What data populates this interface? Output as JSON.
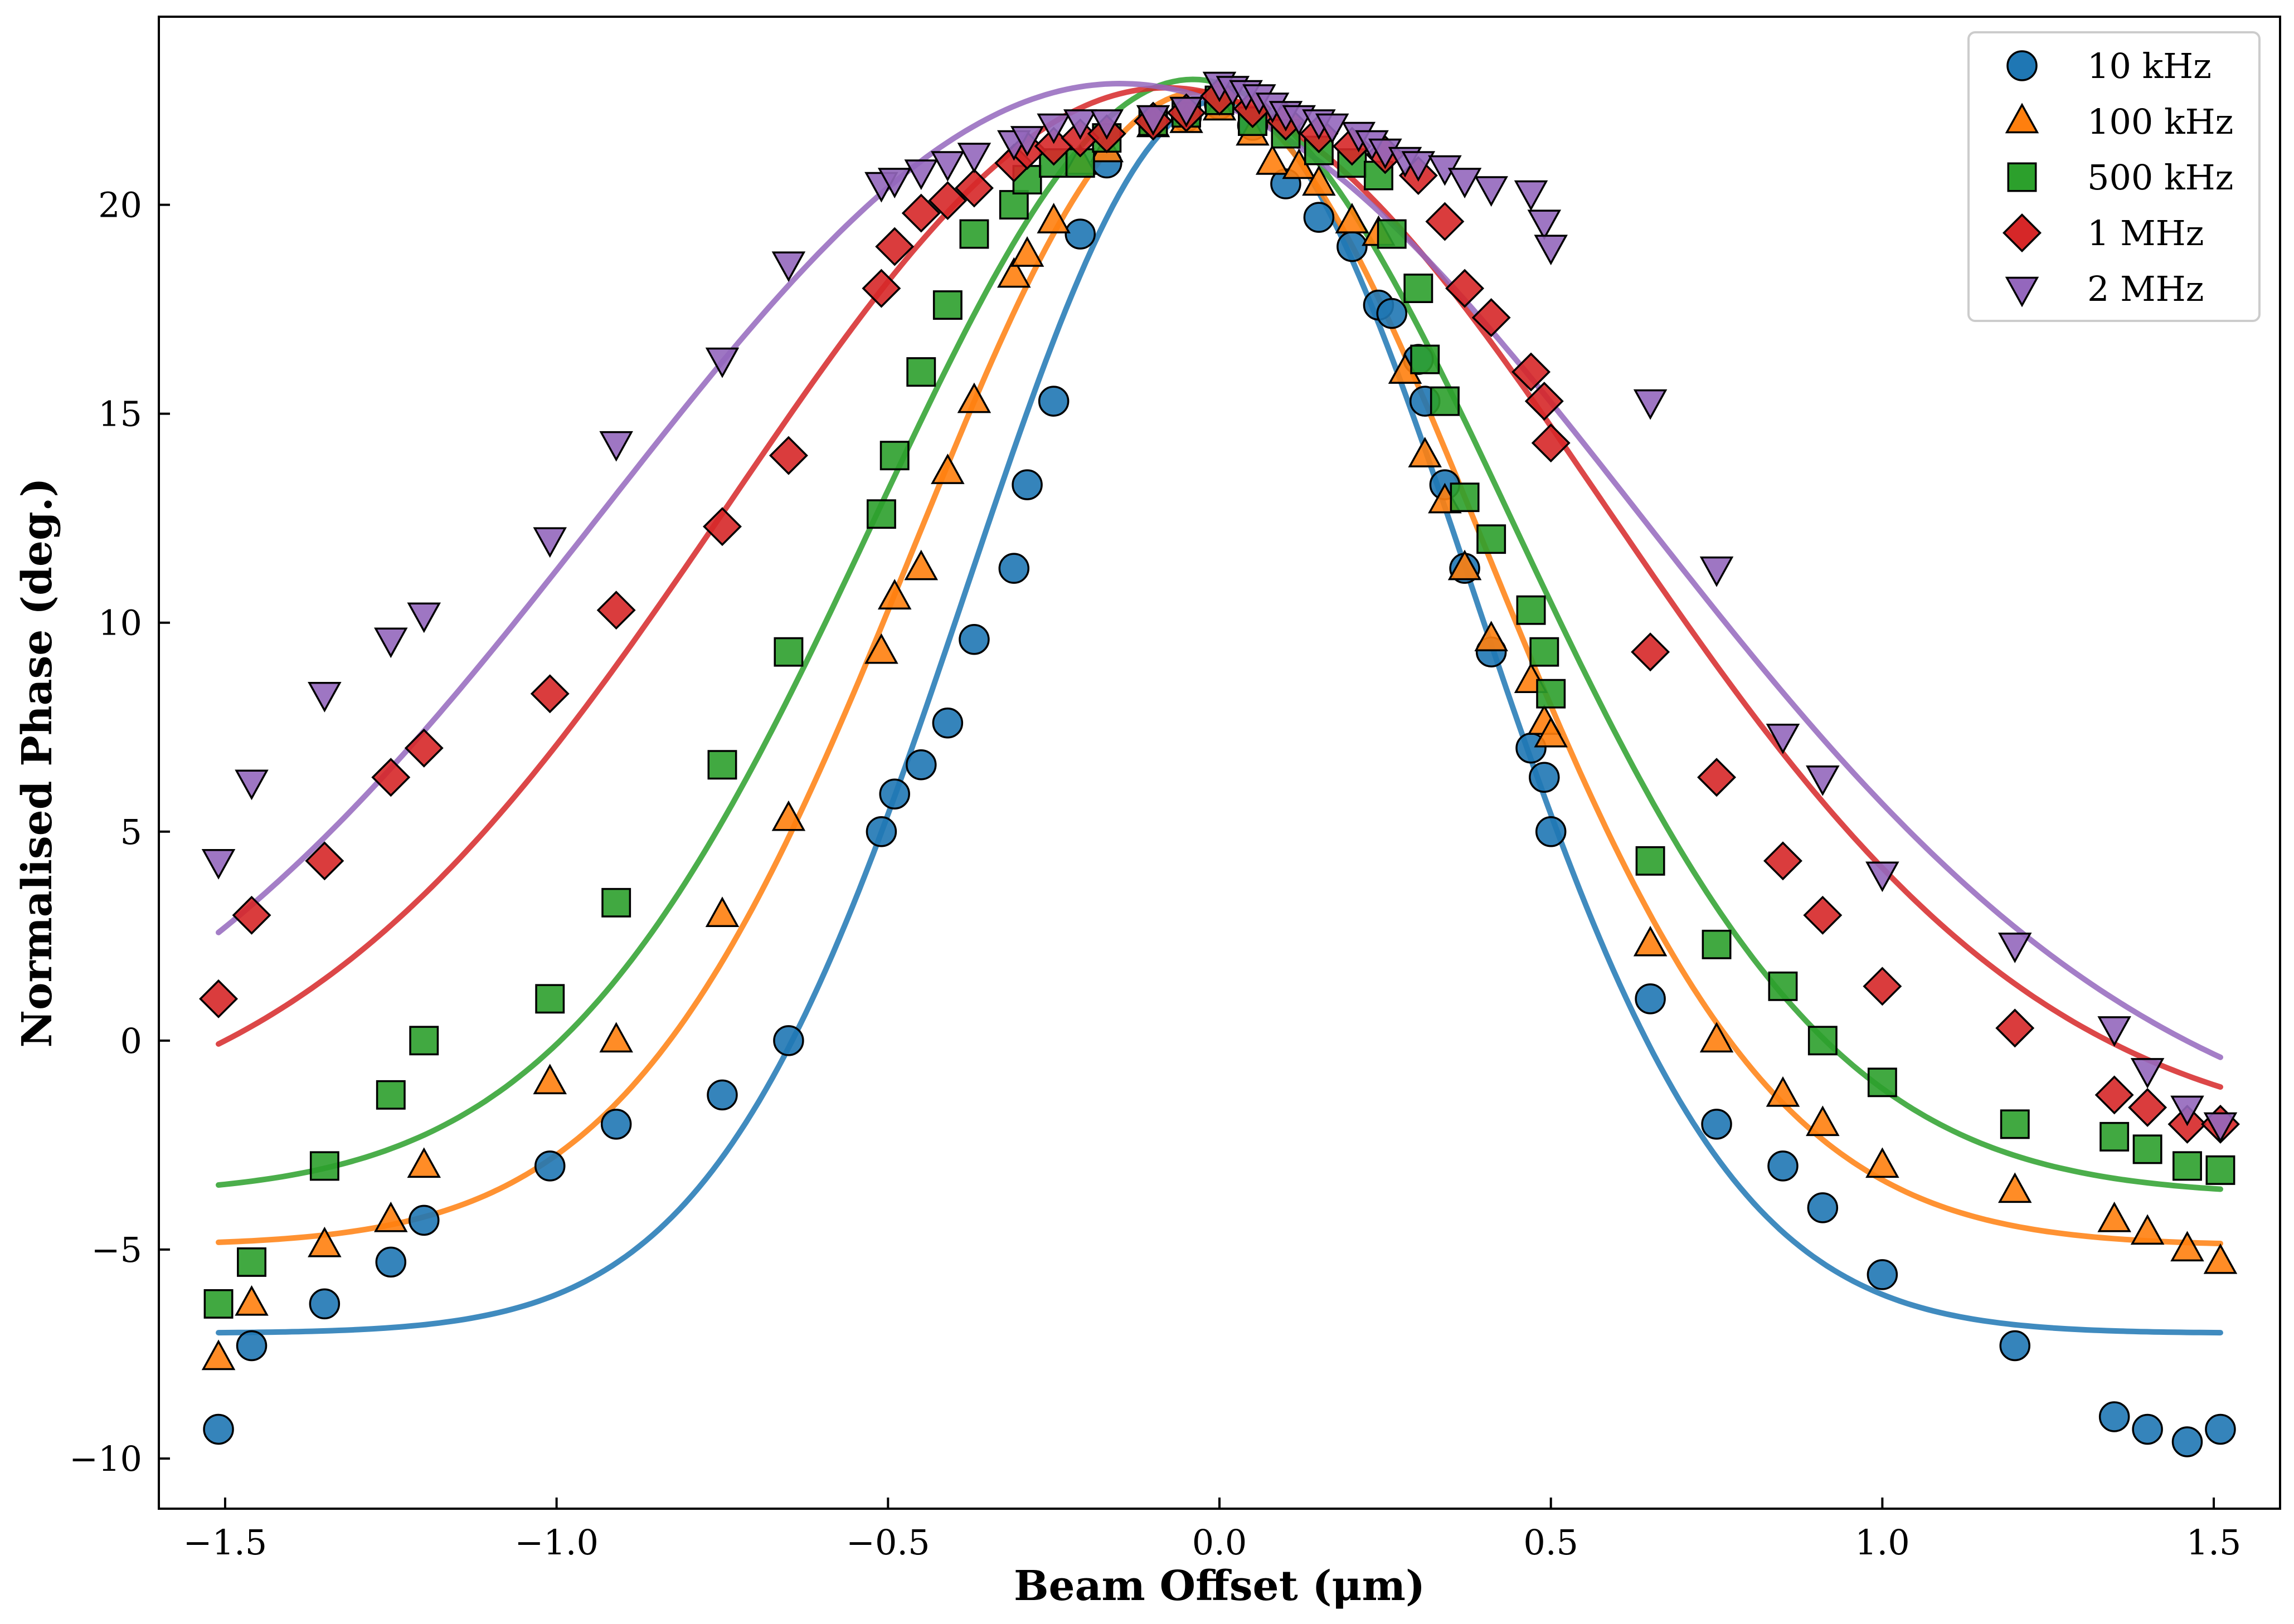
{
  "chart_data": {
    "type": "scatter",
    "title": "",
    "xlabel": "Beam Offset (μm)",
    "ylabel": "Normalised Phase (deg.)",
    "xlim": [
      -1.6,
      1.6
    ],
    "ylim": [
      -11.2,
      24.5
    ],
    "xticks": [
      -1.5,
      -1.0,
      -0.5,
      0.0,
      0.5,
      1.0,
      1.5
    ],
    "xtick_labels": [
      "−1.5",
      "−1.0",
      "−0.5",
      "0.0",
      "0.5",
      "1.0",
      "1.5"
    ],
    "yticks": [
      -10,
      -5,
      0,
      5,
      10,
      15,
      20
    ],
    "ytick_labels": [
      "−10",
      "−5",
      "0",
      "5",
      "10",
      "15",
      "20"
    ],
    "grid": false,
    "legend_position": "top-right",
    "series": [
      {
        "name": "10 kHz",
        "color": "#1f77b4",
        "marker": "circle",
        "fit_curve": {
          "baseline": -7.0,
          "amplitude": 29.5,
          "center": 0.0,
          "sigma": 0.38
        },
        "points": [
          [
            -1.51,
            -9.3
          ],
          [
            -1.46,
            -7.3
          ],
          [
            -1.35,
            -6.3
          ],
          [
            -1.25,
            -5.3
          ],
          [
            -1.2,
            -4.3
          ],
          [
            -1.01,
            -3.0
          ],
          [
            -0.91,
            -2.0
          ],
          [
            -0.75,
            -1.3
          ],
          [
            -0.65,
            0.0
          ],
          [
            -0.51,
            5.0
          ],
          [
            -0.49,
            5.9
          ],
          [
            -0.45,
            6.6
          ],
          [
            -0.41,
            7.6
          ],
          [
            -0.37,
            9.6
          ],
          [
            -0.31,
            11.3
          ],
          [
            -0.29,
            13.3
          ],
          [
            -0.25,
            15.3
          ],
          [
            -0.21,
            19.3
          ],
          [
            -0.17,
            21.0
          ],
          [
            -0.1,
            22.0
          ],
          [
            -0.05,
            22.1
          ],
          [
            0.0,
            22.4
          ],
          [
            0.05,
            21.9
          ],
          [
            0.1,
            20.5
          ],
          [
            0.15,
            19.7
          ],
          [
            0.2,
            19.0
          ],
          [
            0.24,
            17.6
          ],
          [
            0.26,
            17.4
          ],
          [
            0.3,
            16.3
          ],
          [
            0.31,
            15.3
          ],
          [
            0.34,
            13.3
          ],
          [
            0.37,
            11.3
          ],
          [
            0.41,
            9.3
          ],
          [
            0.47,
            7.0
          ],
          [
            0.49,
            6.3
          ],
          [
            0.5,
            5.0
          ],
          [
            0.65,
            1.0
          ],
          [
            0.75,
            -2.0
          ],
          [
            0.85,
            -3.0
          ],
          [
            0.91,
            -4.0
          ],
          [
            1.0,
            -5.6
          ],
          [
            1.2,
            -7.3
          ],
          [
            1.35,
            -9.0
          ],
          [
            1.4,
            -9.3
          ],
          [
            1.46,
            -9.6
          ],
          [
            1.51,
            -9.3
          ]
        ]
      },
      {
        "name": "100 kHz",
        "color": "#ff7f0e",
        "marker": "triangle-up",
        "fit_curve": {
          "baseline": -4.9,
          "amplitude": 27.6,
          "center": -0.03,
          "sigma": 0.43
        },
        "points": [
          [
            -1.51,
            -7.6
          ],
          [
            -1.46,
            -6.3
          ],
          [
            -1.35,
            -4.9
          ],
          [
            -1.25,
            -4.3
          ],
          [
            -1.2,
            -3.0
          ],
          [
            -1.01,
            -1.0
          ],
          [
            -0.91,
            0.0
          ],
          [
            -0.75,
            3.0
          ],
          [
            -0.65,
            5.3
          ],
          [
            -0.51,
            9.3
          ],
          [
            -0.49,
            10.6
          ],
          [
            -0.45,
            11.3
          ],
          [
            -0.41,
            13.6
          ],
          [
            -0.37,
            15.3
          ],
          [
            -0.31,
            18.3
          ],
          [
            -0.29,
            18.8
          ],
          [
            -0.25,
            19.6
          ],
          [
            -0.21,
            21.0
          ],
          [
            -0.17,
            21.3
          ],
          [
            -0.1,
            21.9
          ],
          [
            -0.05,
            22.0
          ],
          [
            0.0,
            22.3
          ],
          [
            0.05,
            21.7
          ],
          [
            0.08,
            21.0
          ],
          [
            0.12,
            20.9
          ],
          [
            0.15,
            20.5
          ],
          [
            0.2,
            19.6
          ],
          [
            0.24,
            19.3
          ],
          [
            0.28,
            16.0
          ],
          [
            0.31,
            14.0
          ],
          [
            0.34,
            12.9
          ],
          [
            0.37,
            11.3
          ],
          [
            0.41,
            9.6
          ],
          [
            0.47,
            8.6
          ],
          [
            0.49,
            7.6
          ],
          [
            0.5,
            7.3
          ],
          [
            0.65,
            2.3
          ],
          [
            0.75,
            0.0
          ],
          [
            0.85,
            -1.3
          ],
          [
            0.91,
            -2.0
          ],
          [
            1.0,
            -3.0
          ],
          [
            1.2,
            -3.6
          ],
          [
            1.35,
            -4.3
          ],
          [
            1.4,
            -4.6
          ],
          [
            1.46,
            -5.0
          ],
          [
            1.51,
            -5.3
          ]
        ]
      },
      {
        "name": "500 kHz",
        "color": "#2ca02c",
        "marker": "square",
        "fit_curve": {
          "baseline": -3.7,
          "amplitude": 26.7,
          "center": -0.04,
          "sigma": 0.48
        },
        "points": [
          [
            -1.51,
            -6.3
          ],
          [
            -1.46,
            -5.3
          ],
          [
            -1.35,
            -3.0
          ],
          [
            -1.25,
            -1.3
          ],
          [
            -1.2,
            0.0
          ],
          [
            -1.01,
            1.0
          ],
          [
            -0.91,
            3.3
          ],
          [
            -0.75,
            6.6
          ],
          [
            -0.65,
            9.3
          ],
          [
            -0.51,
            12.6
          ],
          [
            -0.49,
            14.0
          ],
          [
            -0.45,
            16.0
          ],
          [
            -0.41,
            17.6
          ],
          [
            -0.37,
            19.3
          ],
          [
            -0.31,
            20.0
          ],
          [
            -0.29,
            20.6
          ],
          [
            -0.25,
            21.0
          ],
          [
            -0.21,
            21.0
          ],
          [
            -0.17,
            21.6
          ],
          [
            -0.1,
            22.0
          ],
          [
            -0.05,
            22.2
          ],
          [
            0.0,
            22.5
          ],
          [
            0.05,
            22.0
          ],
          [
            0.1,
            21.7
          ],
          [
            0.15,
            21.3
          ],
          [
            0.2,
            21.0
          ],
          [
            0.24,
            20.7
          ],
          [
            0.26,
            19.3
          ],
          [
            0.3,
            18.0
          ],
          [
            0.31,
            16.3
          ],
          [
            0.34,
            15.3
          ],
          [
            0.37,
            13.0
          ],
          [
            0.41,
            12.0
          ],
          [
            0.47,
            10.3
          ],
          [
            0.49,
            9.3
          ],
          [
            0.5,
            8.3
          ],
          [
            0.65,
            4.3
          ],
          [
            0.75,
            2.3
          ],
          [
            0.85,
            1.3
          ],
          [
            0.91,
            0.0
          ],
          [
            1.0,
            -1.0
          ],
          [
            1.2,
            -2.0
          ],
          [
            1.35,
            -2.3
          ],
          [
            1.4,
            -2.6
          ],
          [
            1.46,
            -3.0
          ],
          [
            1.51,
            -3.1
          ]
        ]
      },
      {
        "name": "1 MHz",
        "color": "#d62728",
        "marker": "diamond",
        "fit_curve": {
          "baseline": -2.5,
          "amplitude": 25.3,
          "center": -0.08,
          "sigma": 0.66
        },
        "points": [
          [
            -1.51,
            1.0
          ],
          [
            -1.46,
            3.0
          ],
          [
            -1.35,
            4.3
          ],
          [
            -1.25,
            6.3
          ],
          [
            -1.2,
            7.0
          ],
          [
            -1.01,
            8.3
          ],
          [
            -0.91,
            10.3
          ],
          [
            -0.75,
            12.3
          ],
          [
            -0.65,
            14.0
          ],
          [
            -0.51,
            18.0
          ],
          [
            -0.49,
            19.0
          ],
          [
            -0.45,
            19.8
          ],
          [
            -0.41,
            20.1
          ],
          [
            -0.37,
            20.4
          ],
          [
            -0.31,
            21.0
          ],
          [
            -0.29,
            21.3
          ],
          [
            -0.25,
            21.4
          ],
          [
            -0.21,
            21.6
          ],
          [
            -0.17,
            21.7
          ],
          [
            -0.1,
            22.0
          ],
          [
            -0.05,
            22.2
          ],
          [
            0.0,
            22.6
          ],
          [
            0.05,
            22.3
          ],
          [
            0.1,
            22.0
          ],
          [
            0.15,
            21.7
          ],
          [
            0.2,
            21.4
          ],
          [
            0.25,
            21.2
          ],
          [
            0.3,
            20.7
          ],
          [
            0.34,
            19.6
          ],
          [
            0.37,
            18.0
          ],
          [
            0.41,
            17.3
          ],
          [
            0.47,
            16.0
          ],
          [
            0.49,
            15.3
          ],
          [
            0.5,
            14.3
          ],
          [
            0.65,
            9.3
          ],
          [
            0.75,
            6.3
          ],
          [
            0.85,
            4.3
          ],
          [
            0.91,
            3.0
          ],
          [
            1.0,
            1.3
          ],
          [
            1.2,
            0.3
          ],
          [
            1.35,
            -1.3
          ],
          [
            1.4,
            -1.6
          ],
          [
            1.46,
            -2.0
          ],
          [
            1.51,
            -2.0
          ]
        ]
      },
      {
        "name": "2 MHz",
        "color": "#9467bd",
        "marker": "triangle-down",
        "fit_curve": {
          "baseline": -3.1,
          "amplitude": 26.0,
          "center": -0.15,
          "sigma": 0.78
        },
        "points": [
          [
            -1.51,
            4.3
          ],
          [
            -1.46,
            6.2
          ],
          [
            -1.35,
            8.3
          ],
          [
            -1.25,
            9.6
          ],
          [
            -1.2,
            10.2
          ],
          [
            -1.01,
            12.0
          ],
          [
            -0.91,
            14.3
          ],
          [
            -0.75,
            16.3
          ],
          [
            -0.65,
            18.6
          ],
          [
            -0.51,
            20.5
          ],
          [
            -0.49,
            20.6
          ],
          [
            -0.45,
            20.8
          ],
          [
            -0.41,
            21.0
          ],
          [
            -0.37,
            21.2
          ],
          [
            -0.31,
            21.5
          ],
          [
            -0.29,
            21.6
          ],
          [
            -0.25,
            21.9
          ],
          [
            -0.21,
            22.0
          ],
          [
            -0.17,
            22.0
          ],
          [
            -0.1,
            22.1
          ],
          [
            -0.05,
            22.3
          ],
          [
            0.0,
            22.9
          ],
          [
            0.02,
            22.8
          ],
          [
            0.04,
            22.7
          ],
          [
            0.06,
            22.6
          ],
          [
            0.08,
            22.4
          ],
          [
            0.1,
            22.2
          ],
          [
            0.12,
            22.1
          ],
          [
            0.15,
            22.0
          ],
          [
            0.17,
            21.9
          ],
          [
            0.21,
            21.7
          ],
          [
            0.23,
            21.5
          ],
          [
            0.25,
            21.3
          ],
          [
            0.28,
            21.1
          ],
          [
            0.3,
            21.0
          ],
          [
            0.34,
            20.9
          ],
          [
            0.37,
            20.6
          ],
          [
            0.41,
            20.4
          ],
          [
            0.47,
            20.3
          ],
          [
            0.49,
            19.6
          ],
          [
            0.5,
            19.0
          ],
          [
            0.65,
            15.3
          ],
          [
            0.75,
            11.3
          ],
          [
            0.85,
            7.3
          ],
          [
            0.91,
            6.3
          ],
          [
            1.0,
            4.0
          ],
          [
            1.2,
            2.3
          ],
          [
            1.35,
            0.3
          ],
          [
            1.4,
            -0.7
          ],
          [
            1.46,
            -1.6
          ],
          [
            1.51,
            -2.0
          ]
        ]
      }
    ]
  }
}
